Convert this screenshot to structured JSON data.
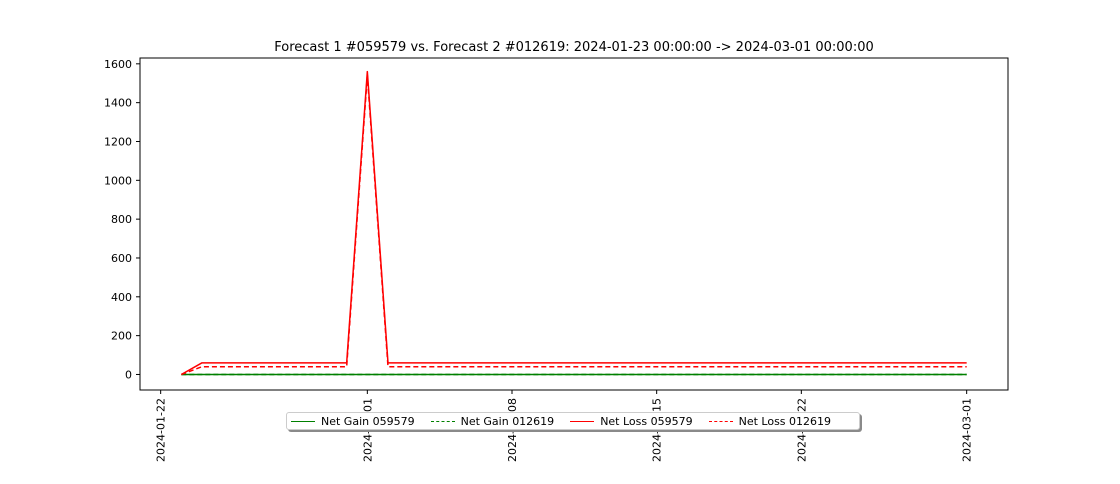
{
  "chart_data": {
    "type": "line",
    "title": "Forecast 1 #059579 vs. Forecast 2 #012619: 2024-01-23 00:00:00 -> 2024-03-01 00:00:00",
    "xlabel": "",
    "ylabel": "",
    "x_ticks": [
      "2024-01-22",
      "2024-02-01",
      "2024-02-08",
      "2024-02-15",
      "2024-02-22",
      "2024-03-01"
    ],
    "x_tick_labels": [
      "2024-01-22",
      "2024-02-01",
      "2024-02-08",
      "2024-02-15",
      "2024-02-22",
      "2024-03-01"
    ],
    "x_range": [
      "2024-01-21",
      "2024-03-03"
    ],
    "y_ticks": [
      0,
      200,
      400,
      600,
      800,
      1000,
      1200,
      1400,
      1600
    ],
    "y_tick_labels": [
      "0",
      "200",
      "400",
      "600",
      "800",
      "1000",
      "1200",
      "1400",
      "1600"
    ],
    "ylim": [
      -80,
      1630
    ],
    "grid": false,
    "legend_position": "bottom-center",
    "series": [
      {
        "name": "Net Gain 059579",
        "color": "#008000",
        "dash": "solid",
        "x": [
          "2024-01-23",
          "2024-03-01"
        ],
        "y": [
          0,
          0
        ]
      },
      {
        "name": "Net Gain 012619",
        "color": "#008000",
        "dash": "dashed",
        "x": [
          "2024-01-23",
          "2024-03-01"
        ],
        "y": [
          0,
          0
        ]
      },
      {
        "name": "Net Loss 059579",
        "color": "#ff0000",
        "dash": "solid",
        "x": [
          "2024-01-23",
          "2024-01-24",
          "2024-01-31",
          "2024-02-01",
          "2024-02-02",
          "2024-03-01"
        ],
        "y": [
          0,
          60,
          60,
          1560,
          60,
          60
        ]
      },
      {
        "name": "Net Loss 012619",
        "color": "#ff0000",
        "dash": "dashed",
        "x": [
          "2024-01-23",
          "2024-01-24",
          "2024-01-31",
          "2024-02-01",
          "2024-02-02",
          "2024-03-01"
        ],
        "y": [
          0,
          40,
          40,
          1540,
          40,
          40
        ]
      }
    ]
  }
}
